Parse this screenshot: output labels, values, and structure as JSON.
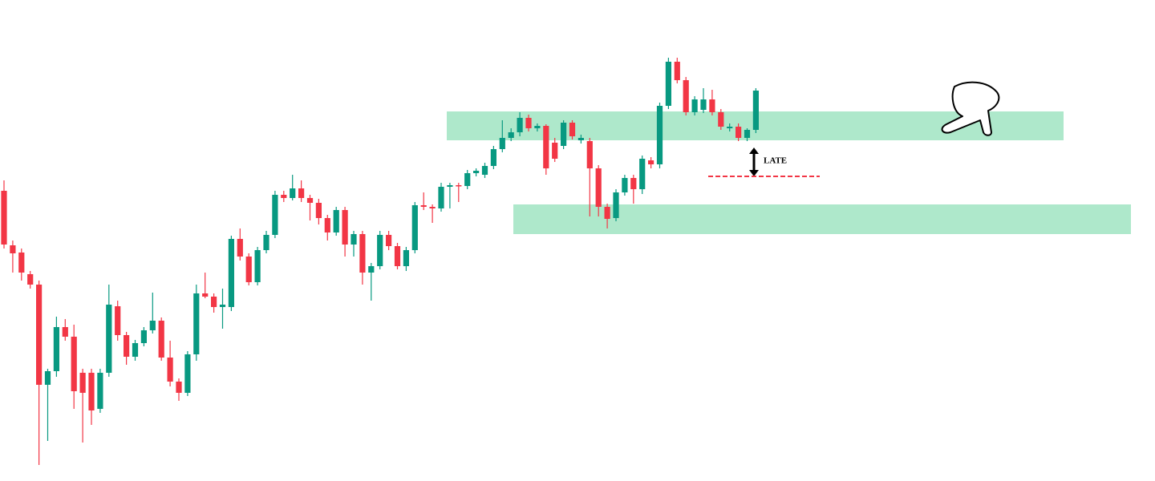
{
  "chart_data": {
    "type": "candlestick",
    "open": [
      362,
      294,
      285,
      258,
      245,
      120,
      137,
      192,
      180,
      135,
      135,
      90,
      135,
      218,
      182,
      155,
      172,
      188,
      200,
      154,
      124,
      110,
      158,
      234,
      230,
      217,
      217,
      302,
      280,
      248,
      288,
      307,
      357,
      353,
      365,
      353,
      347,
      328,
      310,
      338,
      295,
      308,
      260,
      268,
      307,
      293,
      268,
      288,
      344,
      342,
      340,
      367,
      369,
      368,
      384,
      382,
      393,
      414,
      428,
      435,
      453,
      440,
      443,
      422,
      418,
      447,
      425,
      424,
      390,
      342,
      328,
      360,
      378,
      364,
      400,
      395,
      468,
      523,
      500,
      460,
      463,
      476,
      460,
      440,
      442,
      428,
      438
    ],
    "high": [
      375,
      300,
      290,
      262,
      250,
      140,
      205,
      202,
      195,
      140,
      140,
      140,
      245,
      225,
      186,
      176,
      192,
      235,
      204,
      175,
      128,
      162,
      245,
      260,
      234,
      240,
      306,
      315,
      284,
      292,
      312,
      362,
      362,
      382,
      375,
      357,
      352,
      332,
      342,
      342,
      312,
      312,
      272,
      312,
      312,
      297,
      292,
      348,
      360,
      345,
      372,
      372,
      372,
      388,
      390,
      397,
      418,
      450,
      440,
      460,
      457,
      446,
      445,
      428,
      450,
      450,
      432,
      428,
      394,
      346,
      364,
      382,
      382,
      406,
      404,
      472,
      528,
      528,
      504,
      480,
      490,
      488,
      464,
      446,
      446,
      440,
      490
    ],
    "low": [
      290,
      260,
      250,
      240,
      20,
      50,
      130,
      175,
      90,
      48,
      70,
      85,
      130,
      175,
      145,
      150,
      168,
      184,
      150,
      118,
      100,
      106,
      150,
      228,
      210,
      190,
      212,
      275,
      244,
      244,
      284,
      303,
      348,
      350,
      348,
      325,
      320,
      300,
      306,
      280,
      280,
      245,
      225,
      264,
      288,
      264,
      262,
      284,
      338,
      322,
      336,
      340,
      348,
      364,
      380,
      378,
      389,
      410,
      424,
      430,
      436,
      436,
      382,
      398,
      414,
      426,
      421,
      330,
      330,
      315,
      324,
      356,
      346,
      358,
      390,
      390,
      464,
      496,
      456,
      456,
      459,
      456,
      438,
      436,
      424,
      424,
      434
    ],
    "close": [
      295,
      284,
      260,
      245,
      120,
      137,
      192,
      180,
      112,
      110,
      88,
      135,
      220,
      182,
      155,
      172,
      188,
      200,
      154,
      124,
      110,
      158,
      234,
      230,
      217,
      220,
      302,
      280,
      248,
      288,
      307,
      357,
      353,
      365,
      353,
      347,
      328,
      310,
      338,
      295,
      308,
      260,
      268,
      307,
      293,
      268,
      288,
      344,
      342,
      340,
      367,
      369,
      368,
      384,
      387,
      393,
      414,
      428,
      435,
      453,
      440,
      443,
      390,
      402,
      447,
      430,
      428,
      390,
      342,
      327,
      360,
      378,
      364,
      402,
      395,
      468,
      523,
      500,
      460,
      476,
      476,
      460,
      442,
      442,
      428,
      438,
      487
    ],
    "ylim": [
      0,
      600
    ],
    "up_color": "#089981",
    "down_color": "#f23645",
    "zones": [
      {
        "from": 425,
        "to": 461,
        "color": "#aee8cb"
      },
      {
        "from": 308,
        "to": 345,
        "color": "#aee8cb"
      }
    ],
    "level": {
      "value": 380,
      "color": "#f23645",
      "label": "LATE"
    }
  }
}
